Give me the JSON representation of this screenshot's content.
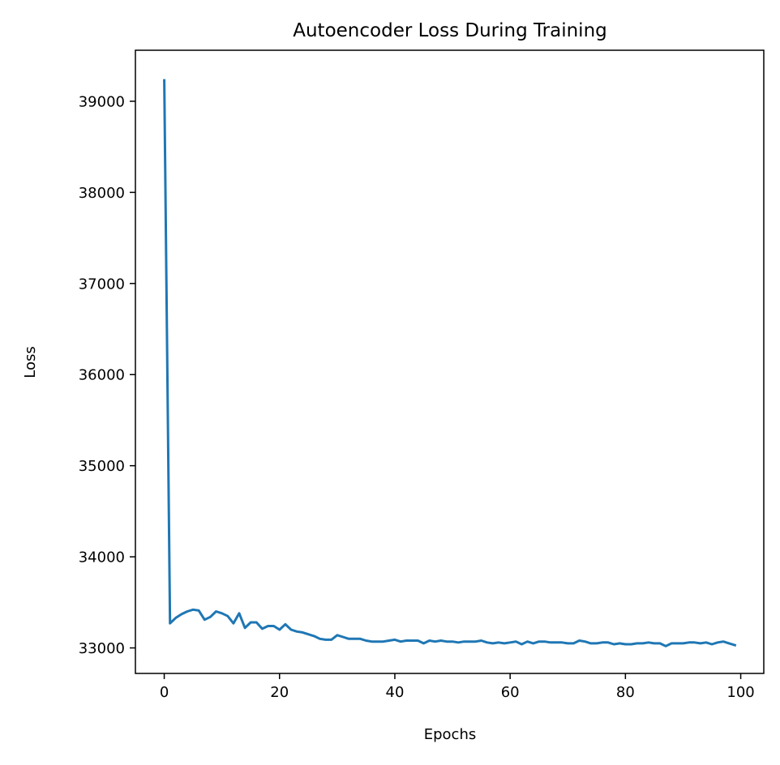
{
  "chart_data": {
    "type": "line",
    "title": "Autoencoder Loss During Training",
    "xlabel": "Epochs",
    "ylabel": "Loss",
    "xlim": [
      -5,
      104
    ],
    "ylim": [
      32720,
      39560
    ],
    "xticks": [
      0,
      20,
      40,
      60,
      80,
      100
    ],
    "yticks": [
      33000,
      34000,
      35000,
      36000,
      37000,
      38000,
      39000
    ],
    "xtick_labels": [
      "0",
      "20",
      "40",
      "60",
      "80",
      "100"
    ],
    "ytick_labels": [
      "33000",
      "34000",
      "35000",
      "36000",
      "37000",
      "38000",
      "39000"
    ],
    "grid": false,
    "line_color": "#1f77b4",
    "series": [
      {
        "x": [
          0,
          1,
          2,
          3,
          4,
          5,
          6,
          7,
          8,
          9,
          10,
          11,
          12,
          13,
          14,
          15,
          16,
          17,
          18,
          19,
          20,
          21,
          22,
          23,
          24,
          25,
          26,
          27,
          28,
          29,
          30,
          31,
          32,
          33,
          34,
          35,
          36,
          37,
          38,
          39,
          40,
          41,
          42,
          43,
          44,
          45,
          46,
          47,
          48,
          49,
          50,
          51,
          52,
          53,
          54,
          55,
          56,
          57,
          58,
          59,
          60,
          61,
          62,
          63,
          64,
          65,
          66,
          67,
          68,
          69,
          70,
          71,
          72,
          73,
          74,
          75,
          76,
          77,
          78,
          79,
          80,
          81,
          82,
          83,
          84,
          85,
          86,
          87,
          88,
          89,
          90,
          91,
          92,
          93,
          94,
          95,
          96,
          97,
          98,
          99
        ],
        "values": [
          39230,
          33270,
          33330,
          33370,
          33400,
          33420,
          33410,
          33310,
          33340,
          33400,
          33380,
          33350,
          33270,
          33380,
          33220,
          33280,
          33280,
          33210,
          33240,
          33240,
          33200,
          33260,
          33200,
          33180,
          33170,
          33150,
          33130,
          33100,
          33090,
          33090,
          33140,
          33120,
          33100,
          33100,
          33100,
          33080,
          33070,
          33070,
          33070,
          33080,
          33090,
          33070,
          33080,
          33080,
          33080,
          33050,
          33080,
          33070,
          33080,
          33070,
          33070,
          33060,
          33070,
          33070,
          33070,
          33080,
          33060,
          33050,
          33060,
          33050,
          33060,
          33070,
          33040,
          33070,
          33050,
          33070,
          33070,
          33060,
          33060,
          33060,
          33050,
          33050,
          33080,
          33070,
          33050,
          33050,
          33060,
          33060,
          33040,
          33050,
          33040,
          33040,
          33050,
          33050,
          33060,
          33050,
          33050,
          33020,
          33050,
          33050,
          33050,
          33060,
          33060,
          33050,
          33060,
          33040,
          33060,
          33070,
          33050,
          33030
        ]
      }
    ]
  }
}
